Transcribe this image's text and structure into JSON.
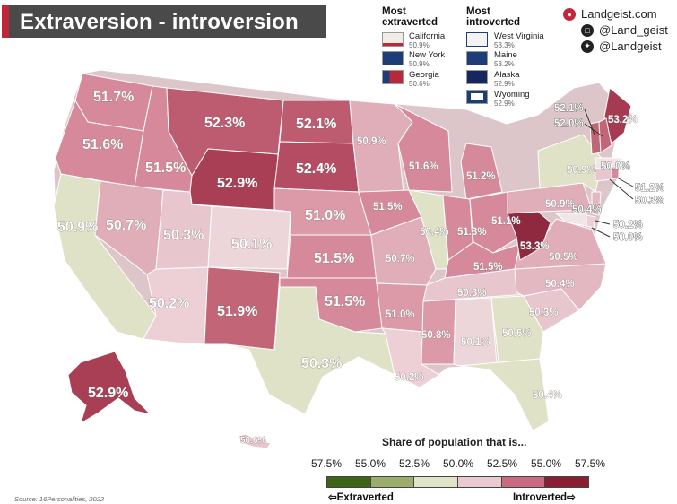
{
  "title": "Extraversion - introversion",
  "legend": {
    "extraverted_heading": "Most extraverted",
    "introverted_heading": "Most introverted",
    "extraverted": [
      {
        "state": "California",
        "pct": "50.9%",
        "flag_color": "#f1ede4"
      },
      {
        "state": "New York",
        "pct": "50.9%",
        "flag_color": "#1d3d78"
      },
      {
        "state": "Georgia",
        "pct": "50.6%",
        "flag_color": "#b8273a"
      }
    ],
    "introverted": [
      {
        "state": "West Virginia",
        "pct": "53.3%",
        "flag_color": "#f3f3f3"
      },
      {
        "state": "Maine",
        "pct": "53.2%",
        "flag_color": "#1d3d78"
      },
      {
        "state": "Alaska",
        "pct": "52.9%",
        "flag_color": "#14285e"
      },
      {
        "state": "Wyoming",
        "pct": "52.9%",
        "flag_color": "#1d3d78"
      }
    ]
  },
  "brand": {
    "site": "Landgeist.com",
    "instagram": "@Land_geist",
    "twitter": "@Landgeist",
    "site_icon": "globe-icon",
    "instagram_icon": "instagram-icon",
    "twitter_icon": "twitter-icon"
  },
  "scale": {
    "title": "Share of population that is...",
    "ticks": [
      "57.5%",
      "55.0%",
      "52.5%",
      "50.0%",
      "52.5%",
      "55.0%",
      "57.5%"
    ],
    "colors": [
      "#3d6418",
      "#9aad6c",
      "#dfe3c8",
      "#ecc8d0",
      "#c96a80",
      "#8b1e33"
    ],
    "left_label": "Extraverted",
    "right_label": "Introverted"
  },
  "source": "Source: 16Personalities, 2022",
  "states": {
    "WA": "51.7%",
    "OR": "51.6%",
    "CA": "50.9%",
    "ID": "51.5%",
    "NV": "50.7%",
    "MT": "52.3%",
    "WY": "52.9%",
    "UT": "50.3%",
    "AZ": "50.2%",
    "CO": "50.1%",
    "NM": "51.9%",
    "ND": "52.1%",
    "SD": "52.4%",
    "NE": "51.0%",
    "KS": "51.5%",
    "OK": "51.5%",
    "TX": "50.3%",
    "MN": "50.9%",
    "IA": "51.5%",
    "MO": "50.7%",
    "AR": "51.0%",
    "LA": "50.2%",
    "WI": "51.6%",
    "IL": "50.4%",
    "MI": "51.2%",
    "IN": "51.3%",
    "OH": "51.1%",
    "KY": "51.5%",
    "TN": "50.3%",
    "MS": "50.8%",
    "AL": "50.1%",
    "GA": "50.6%",
    "FL": "50.4%",
    "SC": "50.3%",
    "NC": "50.4%",
    "VA": "50.5%",
    "WV": "53.3%",
    "PA": "50.9%",
    "NY": "50.9%",
    "ME": "53.2%",
    "VT": "52.1%",
    "NH": "52.0%",
    "MA": "50.0%",
    "RI": "51.2%",
    "CT": "50.3%",
    "NJ": "50.4%",
    "DE": "50.2%",
    "MD": "50.0%",
    "AK": "52.9%",
    "HI": "50.6%"
  }
}
